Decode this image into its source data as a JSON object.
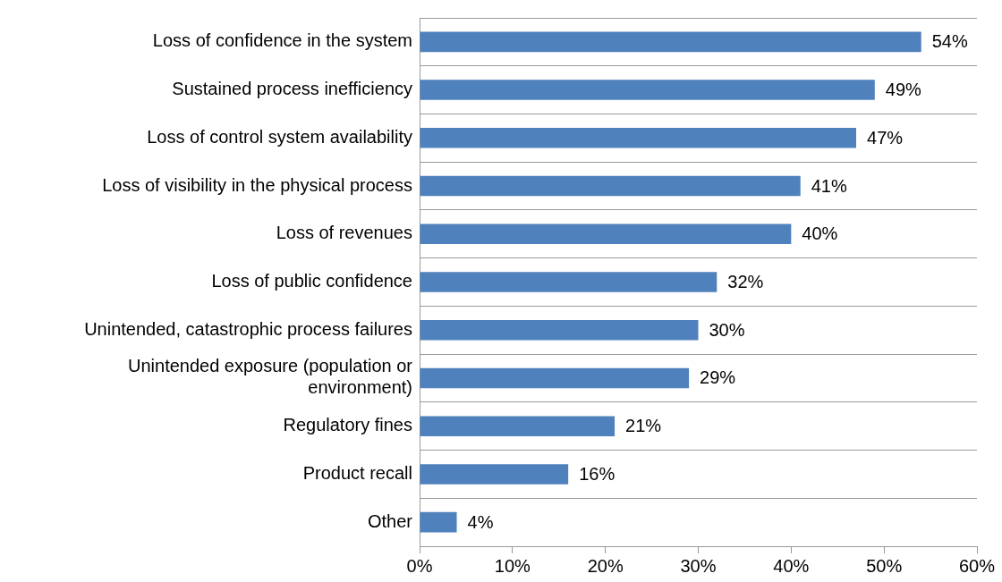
{
  "chart_data": {
    "type": "bar",
    "orientation": "horizontal",
    "categories": [
      "Loss of confidence in the system",
      "Sustained process inefficiency",
      "Loss of control system availability",
      "Loss of visibility in the physical process",
      "Loss of revenues",
      "Loss of public confidence",
      "Unintended, catastrophic process failures",
      "Unintended exposure (population or environment)",
      "Regulatory fines",
      "Product recall",
      "Other"
    ],
    "values": [
      54,
      49,
      47,
      41,
      40,
      32,
      30,
      29,
      21,
      16,
      4
    ],
    "value_labels": [
      "54%",
      "49%",
      "47%",
      "41%",
      "40%",
      "32%",
      "30%",
      "29%",
      "21%",
      "16%",
      "4%"
    ],
    "color": "#4f81bd",
    "xlim": [
      0,
      60
    ],
    "xticks": [
      {
        "value": 0,
        "label": "0%"
      },
      {
        "value": 10,
        "label": "10%"
      },
      {
        "value": 20,
        "label": "20%"
      },
      {
        "value": 30,
        "label": "30%"
      },
      {
        "value": 40,
        "label": "40%"
      },
      {
        "value": 50,
        "label": "50%"
      },
      {
        "value": 60,
        "label": "60%"
      }
    ],
    "grid": "y"
  }
}
